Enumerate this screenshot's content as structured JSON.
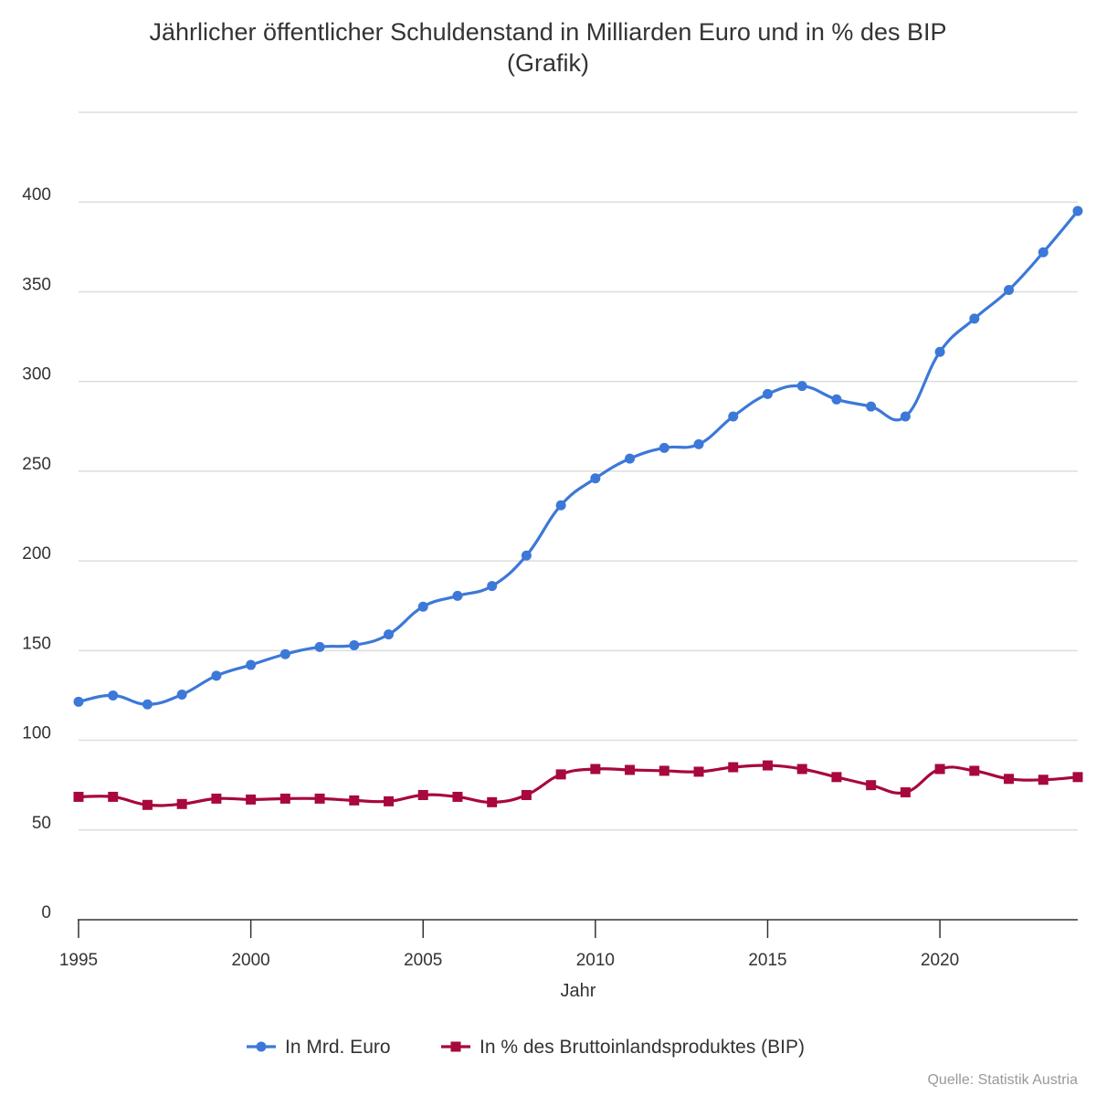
{
  "chart_data": {
    "type": "line",
    "title": [
      "Jährlicher öffentlicher Schuldenstand in Milliarden Euro und in % des BIP",
      "(Grafik)"
    ],
    "xlabel": "Jahr",
    "ylabel": "",
    "x": [
      1995,
      1996,
      1997,
      1998,
      1999,
      2000,
      2001,
      2002,
      2003,
      2004,
      2005,
      2006,
      2007,
      2008,
      2009,
      2010,
      2011,
      2012,
      2013,
      2014,
      2015,
      2016,
      2017,
      2018,
      2019,
      2020,
      2021,
      2022,
      2023,
      2024
    ],
    "xlim": [
      1995,
      2024
    ],
    "ylim": [
      0,
      450
    ],
    "x_ticks": [
      "1995",
      "2000",
      "2005",
      "2010",
      "2015",
      "2020"
    ],
    "y_ticks": [
      "0",
      "50",
      "100",
      "150",
      "200",
      "250",
      "300",
      "350",
      "400"
    ],
    "grid": true,
    "legend_position": "bottom",
    "series": [
      {
        "name": "In Mrd. Euro",
        "color": "#3c78d8",
        "marker": "circle",
        "values": [
          121.5,
          125,
          120,
          125.5,
          136,
          142,
          148,
          152,
          153,
          159,
          174.5,
          180.5,
          186,
          203,
          231,
          246,
          257,
          263,
          265,
          280.5,
          293,
          297.5,
          290,
          286,
          280.5,
          316.5,
          335,
          351,
          372,
          395
        ]
      },
      {
        "name": "In % des Bruttoinlandsproduktes (BIP)",
        "color": "#a8083b",
        "marker": "square",
        "values": [
          68.5,
          68.5,
          64,
          64.5,
          67.5,
          67,
          67.5,
          67.5,
          66.5,
          66,
          69.5,
          68.5,
          65.5,
          69.5,
          81,
          84,
          83.5,
          83,
          82.5,
          85,
          86,
          84,
          79.5,
          75,
          71,
          84,
          83,
          78.5,
          78,
          79.5
        ]
      }
    ]
  },
  "source": "Quelle: Statistik Austria"
}
